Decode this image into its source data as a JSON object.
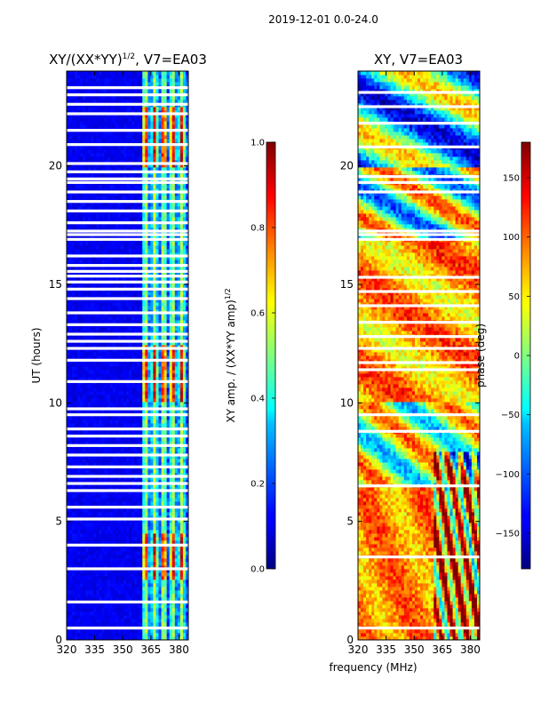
{
  "figure": {
    "suptitle": "2019-12-01 0.0-24.0",
    "shared_xlabel": "frequency (MHz)"
  },
  "chart_data": [
    {
      "type": "heatmap",
      "title_main": "XY/(XX*YY)",
      "title_exp": "1/2",
      "title_rest": ", V7=EA03",
      "xlabel": "",
      "ylabel": "UT (hours)",
      "xlim": [
        320,
        385
      ],
      "ylim": [
        0,
        24
      ],
      "xticks": [
        320,
        335,
        350,
        365,
        380
      ],
      "yticks": [
        0,
        5,
        10,
        15,
        20
      ],
      "colormap": "jet",
      "channel_band_mhz": [
        361,
        385
      ],
      "hot_band_hours": [
        [
          2.5,
          4.5
        ],
        [
          10,
          12.5
        ],
        [
          20,
          22.5
        ]
      ],
      "flagged_hours": [
        0.5,
        1.6,
        3.0,
        4.0,
        5.1,
        5.6,
        6.3,
        6.6,
        6.9,
        7.3,
        7.8,
        8.2,
        8.6,
        8.9,
        9.5,
        9.75,
        10.9,
        11.8,
        12.3,
        12.6,
        12.9,
        13.3,
        13.8,
        14.4,
        14.8,
        15.1,
        15.35,
        15.55,
        15.8,
        16.2,
        16.9,
        17.1,
        17.25,
        17.6,
        18.1,
        18.5,
        18.9,
        19.3,
        19.45,
        19.75,
        20.1,
        20.9,
        21.5,
        22.2,
        22.6,
        23.0,
        23.3
      ],
      "colorbar": {
        "label_main": "XY amp. / (XX*YY amp)",
        "label_exp": "1/2",
        "range": [
          0.0,
          1.0
        ],
        "ticks": [
          "0.0",
          "0.2",
          "0.4",
          "0.6",
          "0.8",
          "1.0"
        ]
      }
    },
    {
      "type": "heatmap",
      "title": "XY, V7=EA03",
      "xlabel": "frequency (MHz)",
      "ylabel": "",
      "xlim": [
        320,
        385
      ],
      "ylim": [
        0,
        24
      ],
      "xticks": [
        320,
        335,
        350,
        365,
        380
      ],
      "yticks": [
        0,
        5,
        10,
        15,
        20
      ],
      "colormap": "jet",
      "flagged_hours": [
        0.5,
        3.5,
        6.5,
        8.8,
        9.5,
        11.4,
        11.7,
        12.3,
        12.8,
        13.4,
        14.1,
        14.7,
        15.3,
        16.9,
        17.1,
        17.25,
        18.9,
        19.3,
        19.55,
        20.8,
        21.8,
        22.5,
        23.1
      ],
      "colorbar": {
        "label": "phase (deg)",
        "range": [
          -180,
          180
        ],
        "ticks": [
          "−150",
          "−100",
          "−50",
          "0",
          "50",
          "100",
          "150"
        ],
        "tick_values": [
          -150,
          -100,
          -50,
          0,
          50,
          100,
          150
        ]
      }
    }
  ]
}
